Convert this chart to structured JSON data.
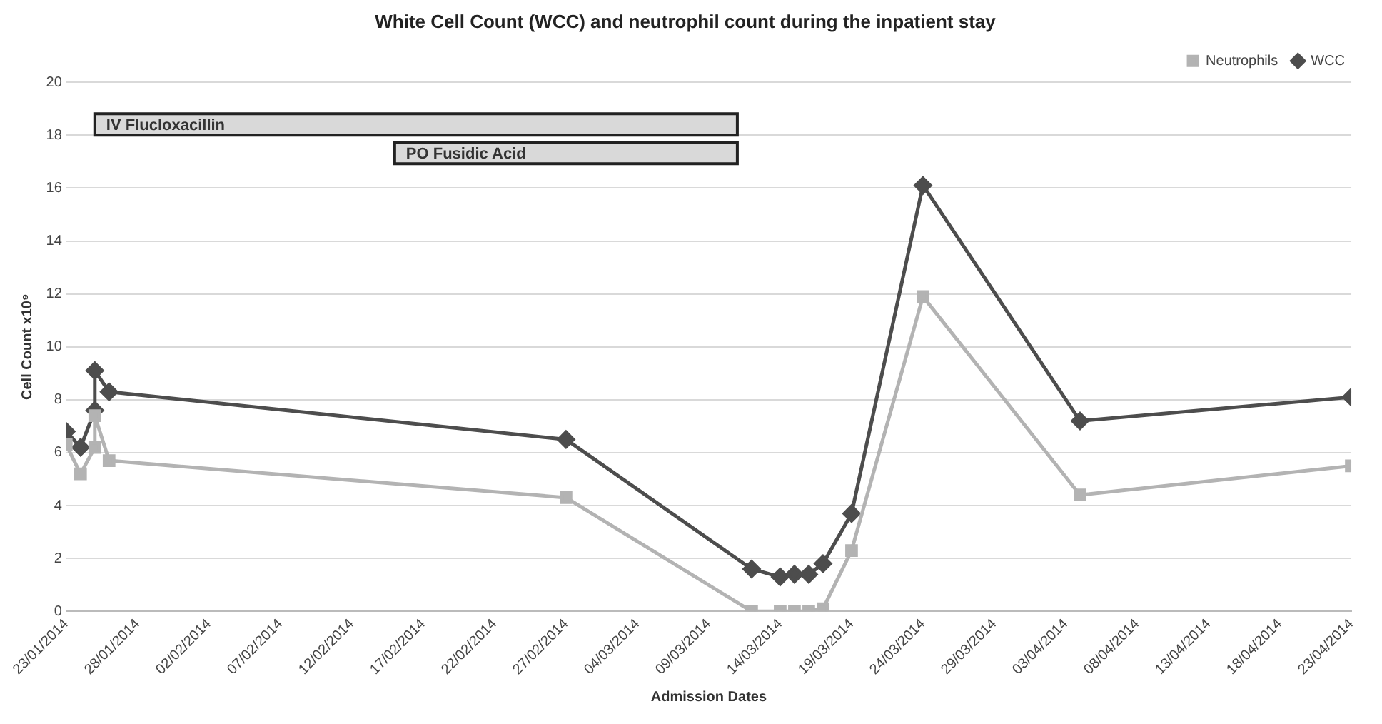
{
  "chart_data": {
    "type": "line",
    "title": "White Cell Count (WCC) and neutrophil count during the inpatient stay",
    "xlabel": "Admission Dates",
    "ylabel": "Cell Count x10⁹",
    "x": [
      "2014-01-23",
      "2014-01-24",
      "2014-01-25",
      "2014-01-25",
      "2014-01-26",
      "2014-02-27",
      "2014-03-12",
      "2014-03-14",
      "2014-03-15",
      "2014-03-16",
      "2014-03-17",
      "2014-03-19",
      "2014-03-24",
      "2014-04-04",
      "2014-04-23"
    ],
    "series": [
      {
        "name": "WCC",
        "color": "#4d4d4d",
        "marker": "diamond",
        "values": [
          6.8,
          6.2,
          7.6,
          9.1,
          8.3,
          6.5,
          1.6,
          1.3,
          1.4,
          1.4,
          1.8,
          3.7,
          16.1,
          7.2,
          8.1
        ]
      },
      {
        "name": "Neutrophils",
        "color": "#b3b3b3",
        "marker": "square",
        "values": [
          6.3,
          5.2,
          6.2,
          7.4,
          5.7,
          4.3,
          0,
          0,
          0,
          0,
          0.1,
          2.3,
          11.9,
          4.4,
          5.5
        ]
      }
    ],
    "bands": [
      {
        "axis": "x",
        "from": "2014-01-25",
        "to": "2014-03-11",
        "label": "IV Flucloxacillin",
        "color": "#d9d9d9"
      },
      {
        "axis": "x",
        "from": "2014-02-15",
        "to": "2014-03-11",
        "label": "PO Fusidic Acid",
        "color": "#d9d9d9"
      }
    ],
    "xlim": [
      "2014-01-23",
      "2014-04-23"
    ],
    "xticks": [
      {
        "value": "2014-01-23",
        "label": "23/01/2014"
      },
      {
        "value": "2014-01-28",
        "label": "28/01/2014"
      },
      {
        "value": "2014-02-02",
        "label": "02/02/2014"
      },
      {
        "value": "2014-02-07",
        "label": "07/02/2014"
      },
      {
        "value": "2014-02-12",
        "label": "12/02/2014"
      },
      {
        "value": "2014-02-17",
        "label": "17/02/2014"
      },
      {
        "value": "2014-02-22",
        "label": "22/02/2014"
      },
      {
        "value": "2014-02-27",
        "label": "27/02/2014"
      },
      {
        "value": "2014-03-04",
        "label": "04/03/2014"
      },
      {
        "value": "2014-03-09",
        "label": "09/03/2014"
      },
      {
        "value": "2014-03-14",
        "label": "14/03/2014"
      },
      {
        "value": "2014-03-19",
        "label": "19/03/2014"
      },
      {
        "value": "2014-03-24",
        "label": "24/03/2014"
      },
      {
        "value": "2014-03-29",
        "label": "29/03/2014"
      },
      {
        "value": "2014-04-03",
        "label": "03/04/2014"
      },
      {
        "value": "2014-04-08",
        "label": "08/04/2014"
      },
      {
        "value": "2014-04-13",
        "label": "13/04/2014"
      },
      {
        "value": "2014-04-18",
        "label": "18/04/2014"
      },
      {
        "value": "2014-04-23",
        "label": "23/04/2014"
      }
    ],
    "ylim": [
      0,
      20
    ],
    "yticks": [
      0,
      2,
      4,
      6,
      8,
      10,
      12,
      14,
      16,
      18,
      20
    ],
    "grid": "y",
    "legend": "top right",
    "line_style": "solid"
  }
}
